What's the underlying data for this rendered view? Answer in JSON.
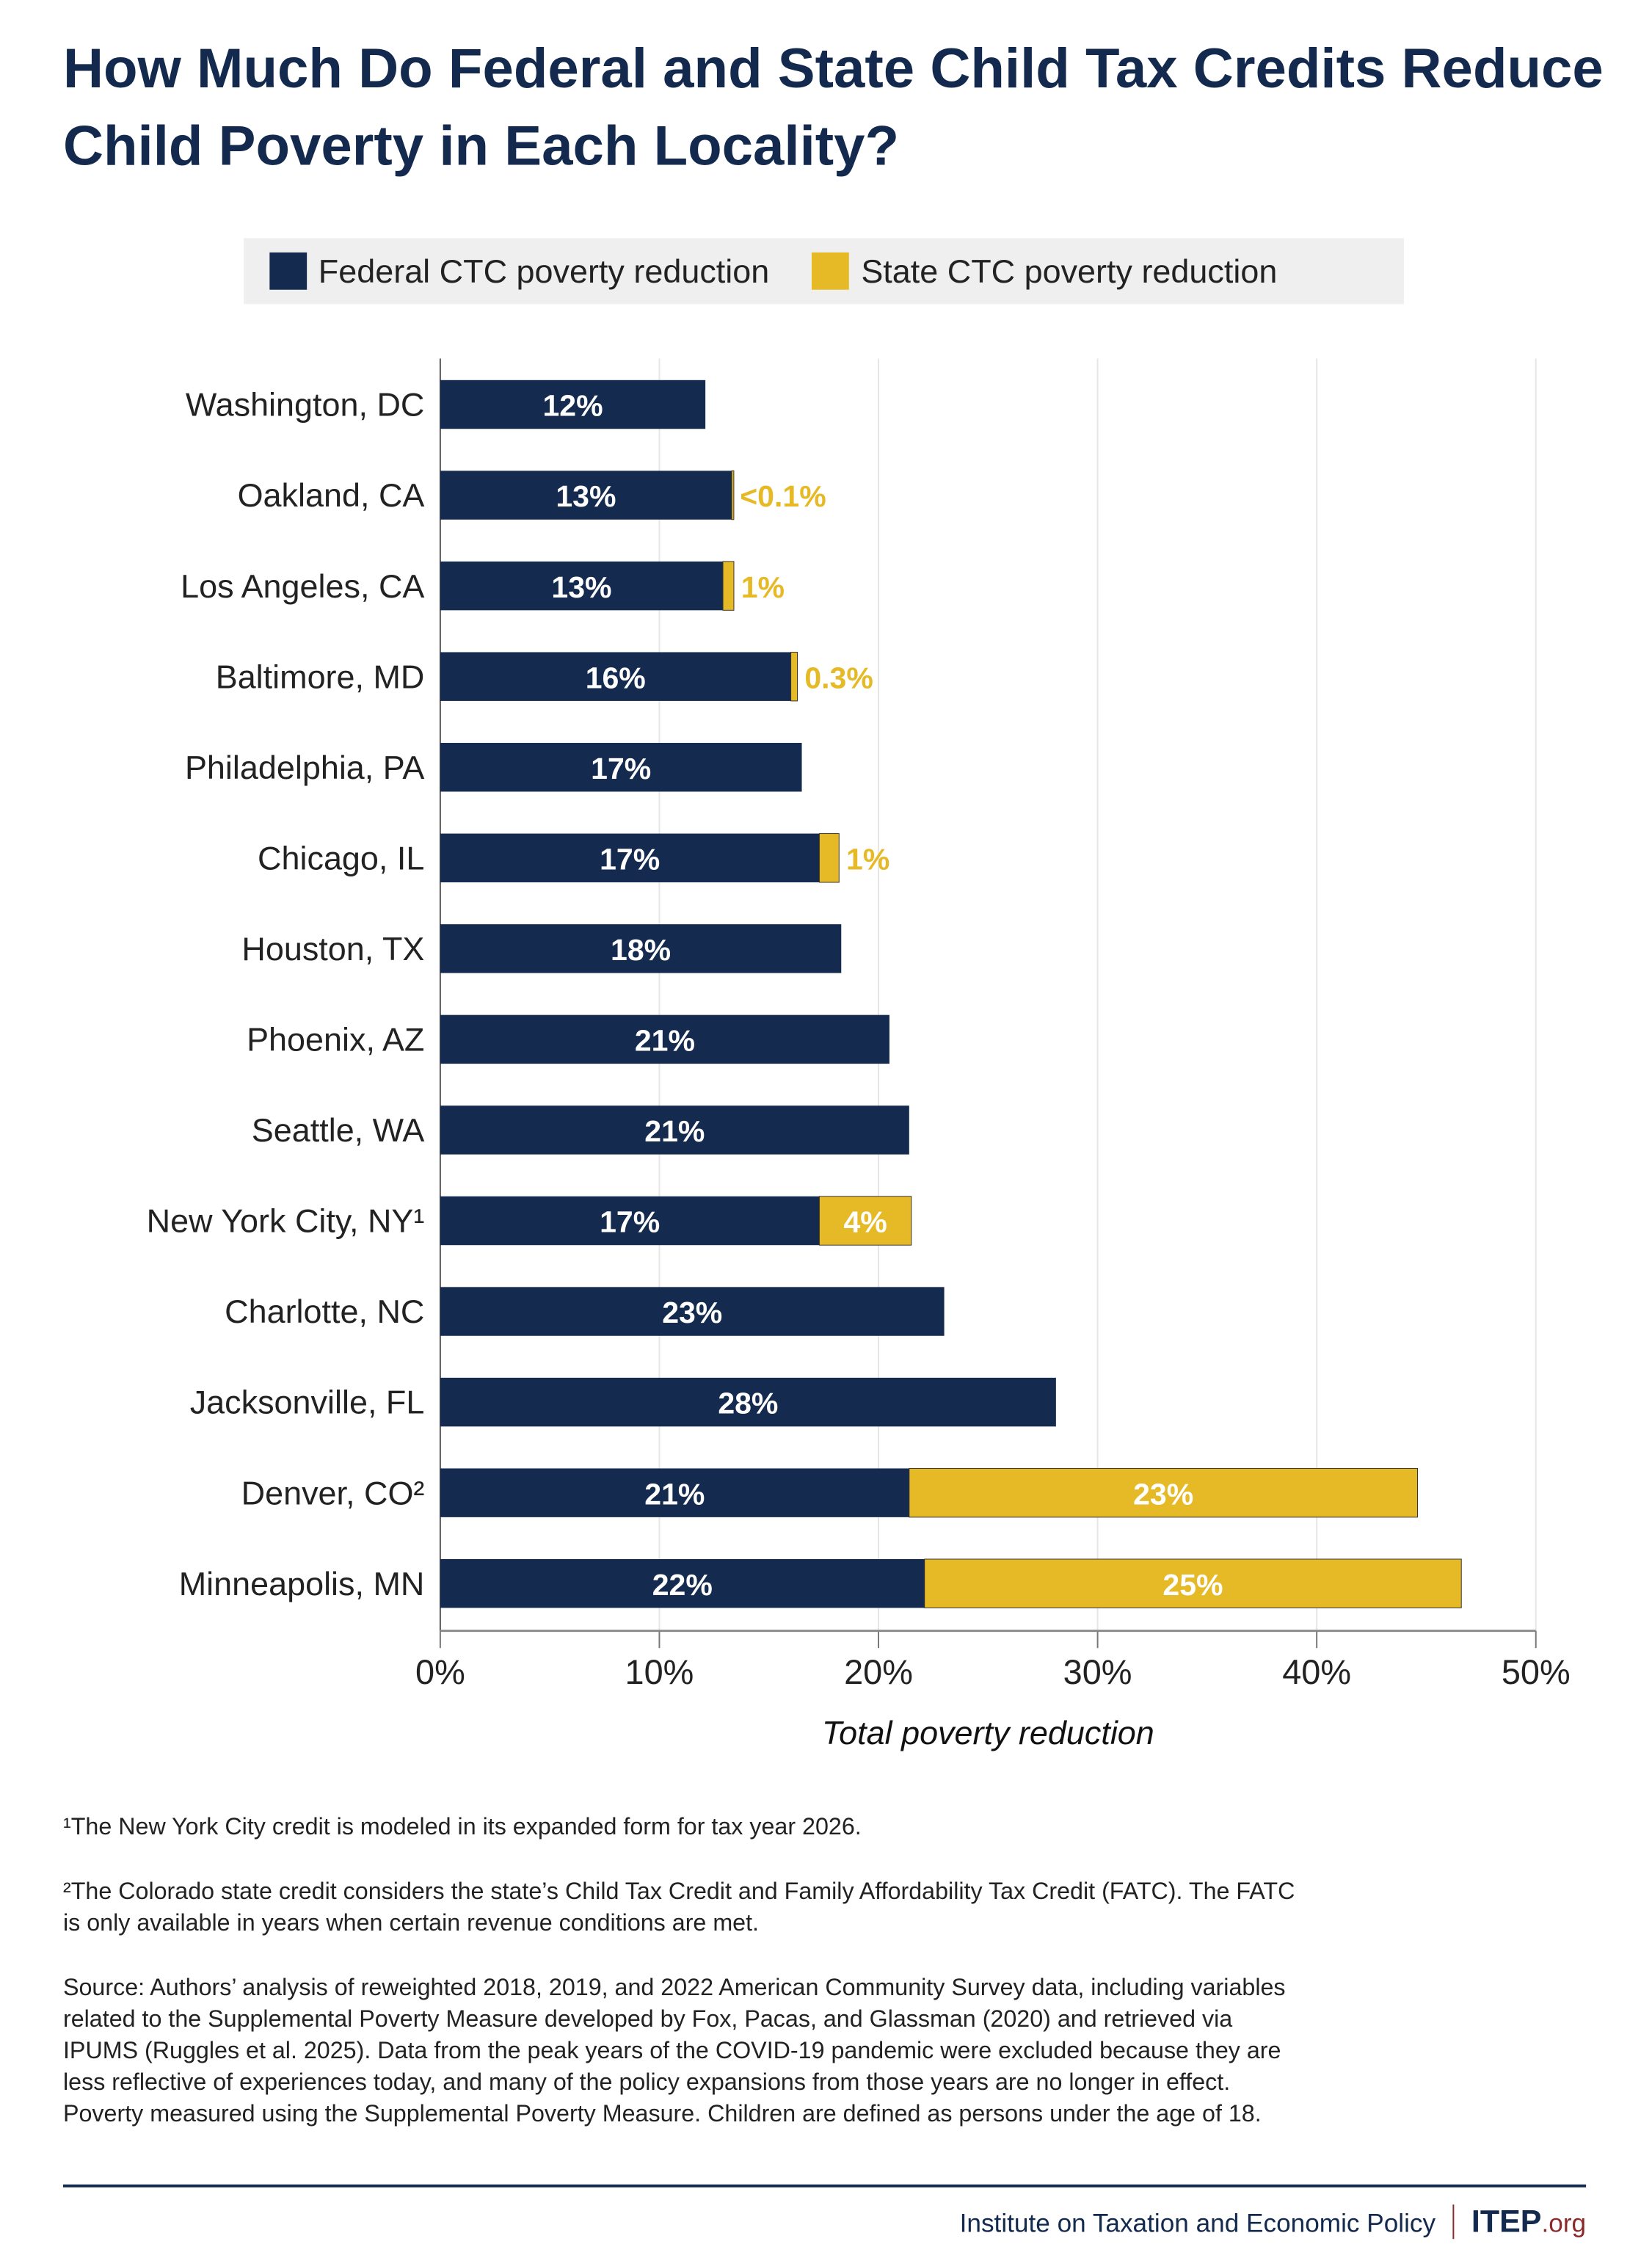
{
  "title": "How Much Do Federal and State Child Tax Credits Reduce Child Poverty in Each Locality?",
  "colors": {
    "federal": "#142a4e",
    "state": "#e6b926",
    "grid": "#e6e6e6",
    "title": "#132a4e",
    "brand_accent": "#8b2a2a"
  },
  "chart_data": {
    "type": "bar",
    "orientation": "horizontal",
    "stacked": true,
    "title": "How Much Do Federal and State Child Tax Credits Reduce Child Poverty in Each Locality?",
    "xlabel": "Total poverty reduction",
    "xlim": [
      0,
      50
    ],
    "xticks": [
      "0%",
      "10%",
      "20%",
      "30%",
      "40%",
      "50%"
    ],
    "grid": "vertical",
    "legend_placement": "top",
    "categories": [
      "Washington, DC",
      "Oakland, CA",
      "Los Angeles, CA",
      "Baltimore, MD",
      "Philadelphia, PA",
      "Chicago, IL",
      "Houston, TX",
      "Phoenix, AZ",
      "Seattle, WA",
      "New York City, NY¹",
      "Charlotte, NC",
      "Jacksonville, FL",
      "Denver, CO²",
      "Minneapolis, MN"
    ],
    "series": [
      {
        "name": "Federal CTC poverty reduction",
        "values": [
          12.1,
          13.3,
          12.9,
          16.0,
          16.5,
          17.3,
          18.3,
          20.5,
          21.4,
          17.3,
          23.0,
          28.1,
          21.4,
          22.1
        ],
        "labels": [
          "12%",
          "13%",
          "13%",
          "16%",
          "17%",
          "17%",
          "18%",
          "21%",
          "21%",
          "17%",
          "23%",
          "28%",
          "21%",
          "22%"
        ]
      },
      {
        "name": "State CTC poverty reduction",
        "values": [
          0,
          0.05,
          0.5,
          0.3,
          0,
          0.9,
          0,
          0,
          0,
          4.2,
          0,
          0,
          23.2,
          24.5
        ],
        "labels": [
          "",
          "<0.1%",
          "1%",
          "0.3%",
          "",
          "1%",
          "",
          "",
          "",
          "4%",
          "",
          "",
          "23%",
          "25%"
        ]
      }
    ]
  },
  "footnotes": [
    "¹The New York City credit is modeled in its expanded form for tax year 2026.",
    "²The Colorado state credit considers the state’s Child Tax Credit and Family Affordability Tax Credit (FATC). The FATC is only available in years when certain revenue conditions are met.",
    "Source: Authors’ analysis of reweighted 2018, 2019, and 2022 American Community Survey data, including variables related to the Supplemental Poverty Measure developed by Fox, Pacas, and Glassman (2020) and retrieved via IPUMS (Ruggles et al. 2025). Data from the peak years of the COVID-19 pandemic were excluded because they are less reflective of experiences today, and many of the policy expansions from those years are no longer in effect. Poverty measured using the Supplemental Poverty Measure. Children are defined as persons under the age of 18."
  ],
  "footer": {
    "org": "Institute on Taxation and Economic Policy",
    "logo_main": "ITEP",
    "logo_suffix": ".org"
  }
}
